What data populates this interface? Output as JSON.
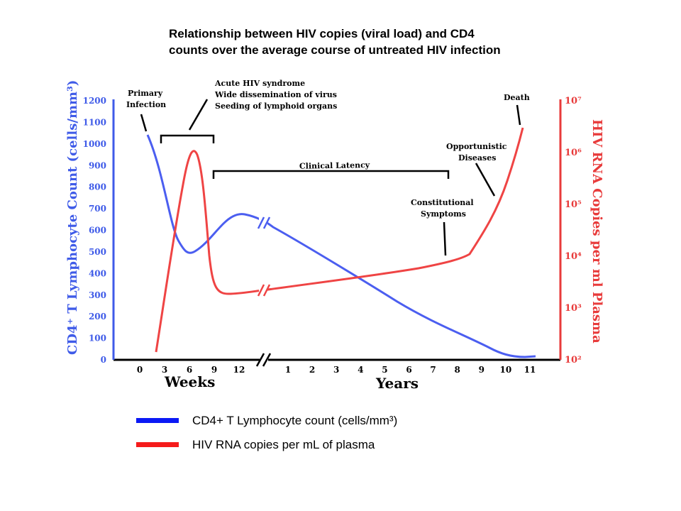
{
  "title_lines": [
    "Relationship between HIV copies (viral load) and CD4",
    "counts over the average course of untreated HIV infection"
  ],
  "colors": {
    "cd4": "#4b5ef0",
    "rna": "#ef4444",
    "axis_black": "#000000",
    "cd4_axis": "#3f5be8",
    "rna_axis": "#e83b3b"
  },
  "legend": [
    {
      "label": "CD4+ T Lymphocyte count (cells/mm³)",
      "color": "#0b19f5"
    },
    {
      "label": "HIV RNA copies per mL of plasma",
      "color": "#f51b1b"
    }
  ],
  "chart_data": {
    "type": "line",
    "title": "",
    "x_weeks_ticks": [
      "0",
      "3",
      "6",
      "9",
      "12"
    ],
    "x_years_ticks": [
      "1",
      "2",
      "3",
      "4",
      "5",
      "6",
      "7",
      "8",
      "9",
      "10",
      "11"
    ],
    "xlabel_weeks": "Weeks",
    "xlabel_years": "Years",
    "y_left": {
      "label": "CD4⁺ T Lymphocyte Count (cells/mm³)",
      "ticks": [
        "0",
        "100",
        "200",
        "300",
        "400",
        "500",
        "600",
        "700",
        "800",
        "900",
        "1000",
        "1100",
        "1200"
      ],
      "range": [
        0,
        1200
      ]
    },
    "y_right": {
      "label": "HIV RNA Copies per ml Plasma",
      "ticks": [
        "10²",
        "10³",
        "10⁴",
        "10⁵",
        "10⁶",
        "10⁷"
      ],
      "range_log10": [
        2,
        7
      ]
    },
    "series": [
      {
        "name": "CD4+ T Lymphocyte count (cells/mm³)",
        "points": [
          {
            "x": "0 weeks",
            "y": 1040
          },
          {
            "x": "3 weeks",
            "y": 800
          },
          {
            "x": "6 weeks",
            "y": 500
          },
          {
            "x": "9 weeks",
            "y": 560
          },
          {
            "x": "12 weeks",
            "y": 670
          },
          {
            "x": "1 year",
            "y": 620
          },
          {
            "x": "2 years",
            "y": 560
          },
          {
            "x": "3 years",
            "y": 480
          },
          {
            "x": "4 years",
            "y": 390
          },
          {
            "x": "5 years",
            "y": 320
          },
          {
            "x": "6 years",
            "y": 250
          },
          {
            "x": "7 years",
            "y": 180
          },
          {
            "x": "8 years",
            "y": 110
          },
          {
            "x": "9 years",
            "y": 50
          },
          {
            "x": "10 years",
            "y": 10
          },
          {
            "x": "11 years",
            "y": 10
          }
        ]
      },
      {
        "name": "HIV RNA copies per mL of plasma",
        "points": [
          {
            "x": "1 week",
            "y": "10^2.1"
          },
          {
            "x": "3 weeks",
            "y": "10^4.5"
          },
          {
            "x": "6 weeks",
            "y": "10^6.1"
          },
          {
            "x": "9 weeks",
            "y": "10^3.3"
          },
          {
            "x": "12 weeks",
            "y": "10^3.3"
          },
          {
            "x": "1 year",
            "y": "10^3.35"
          },
          {
            "x": "3 years",
            "y": "10^3.5"
          },
          {
            "x": "5 years",
            "y": "10^3.7"
          },
          {
            "x": "7 years",
            "y": "10^3.95"
          },
          {
            "x": "8 years",
            "y": "10^4.1"
          },
          {
            "x": "9 years",
            "y": "10^4.8"
          },
          {
            "x": "10 years",
            "y": "10^5.8"
          },
          {
            "x": "10.5 years",
            "y": "10^6.4"
          }
        ]
      }
    ],
    "annotations": {
      "primary_infection": [
        "Primary",
        "Infection"
      ],
      "acute": [
        "Acute HIV syndrome",
        "Wide dissemination of virus",
        "Seeding of lymphoid organs"
      ],
      "clinical_latency": "Clinical Latency",
      "constitutional": [
        "Constitutional",
        "Symptoms"
      ],
      "opportunistic": [
        "Opportunistic",
        "Diseases"
      ],
      "death": "Death"
    }
  }
}
